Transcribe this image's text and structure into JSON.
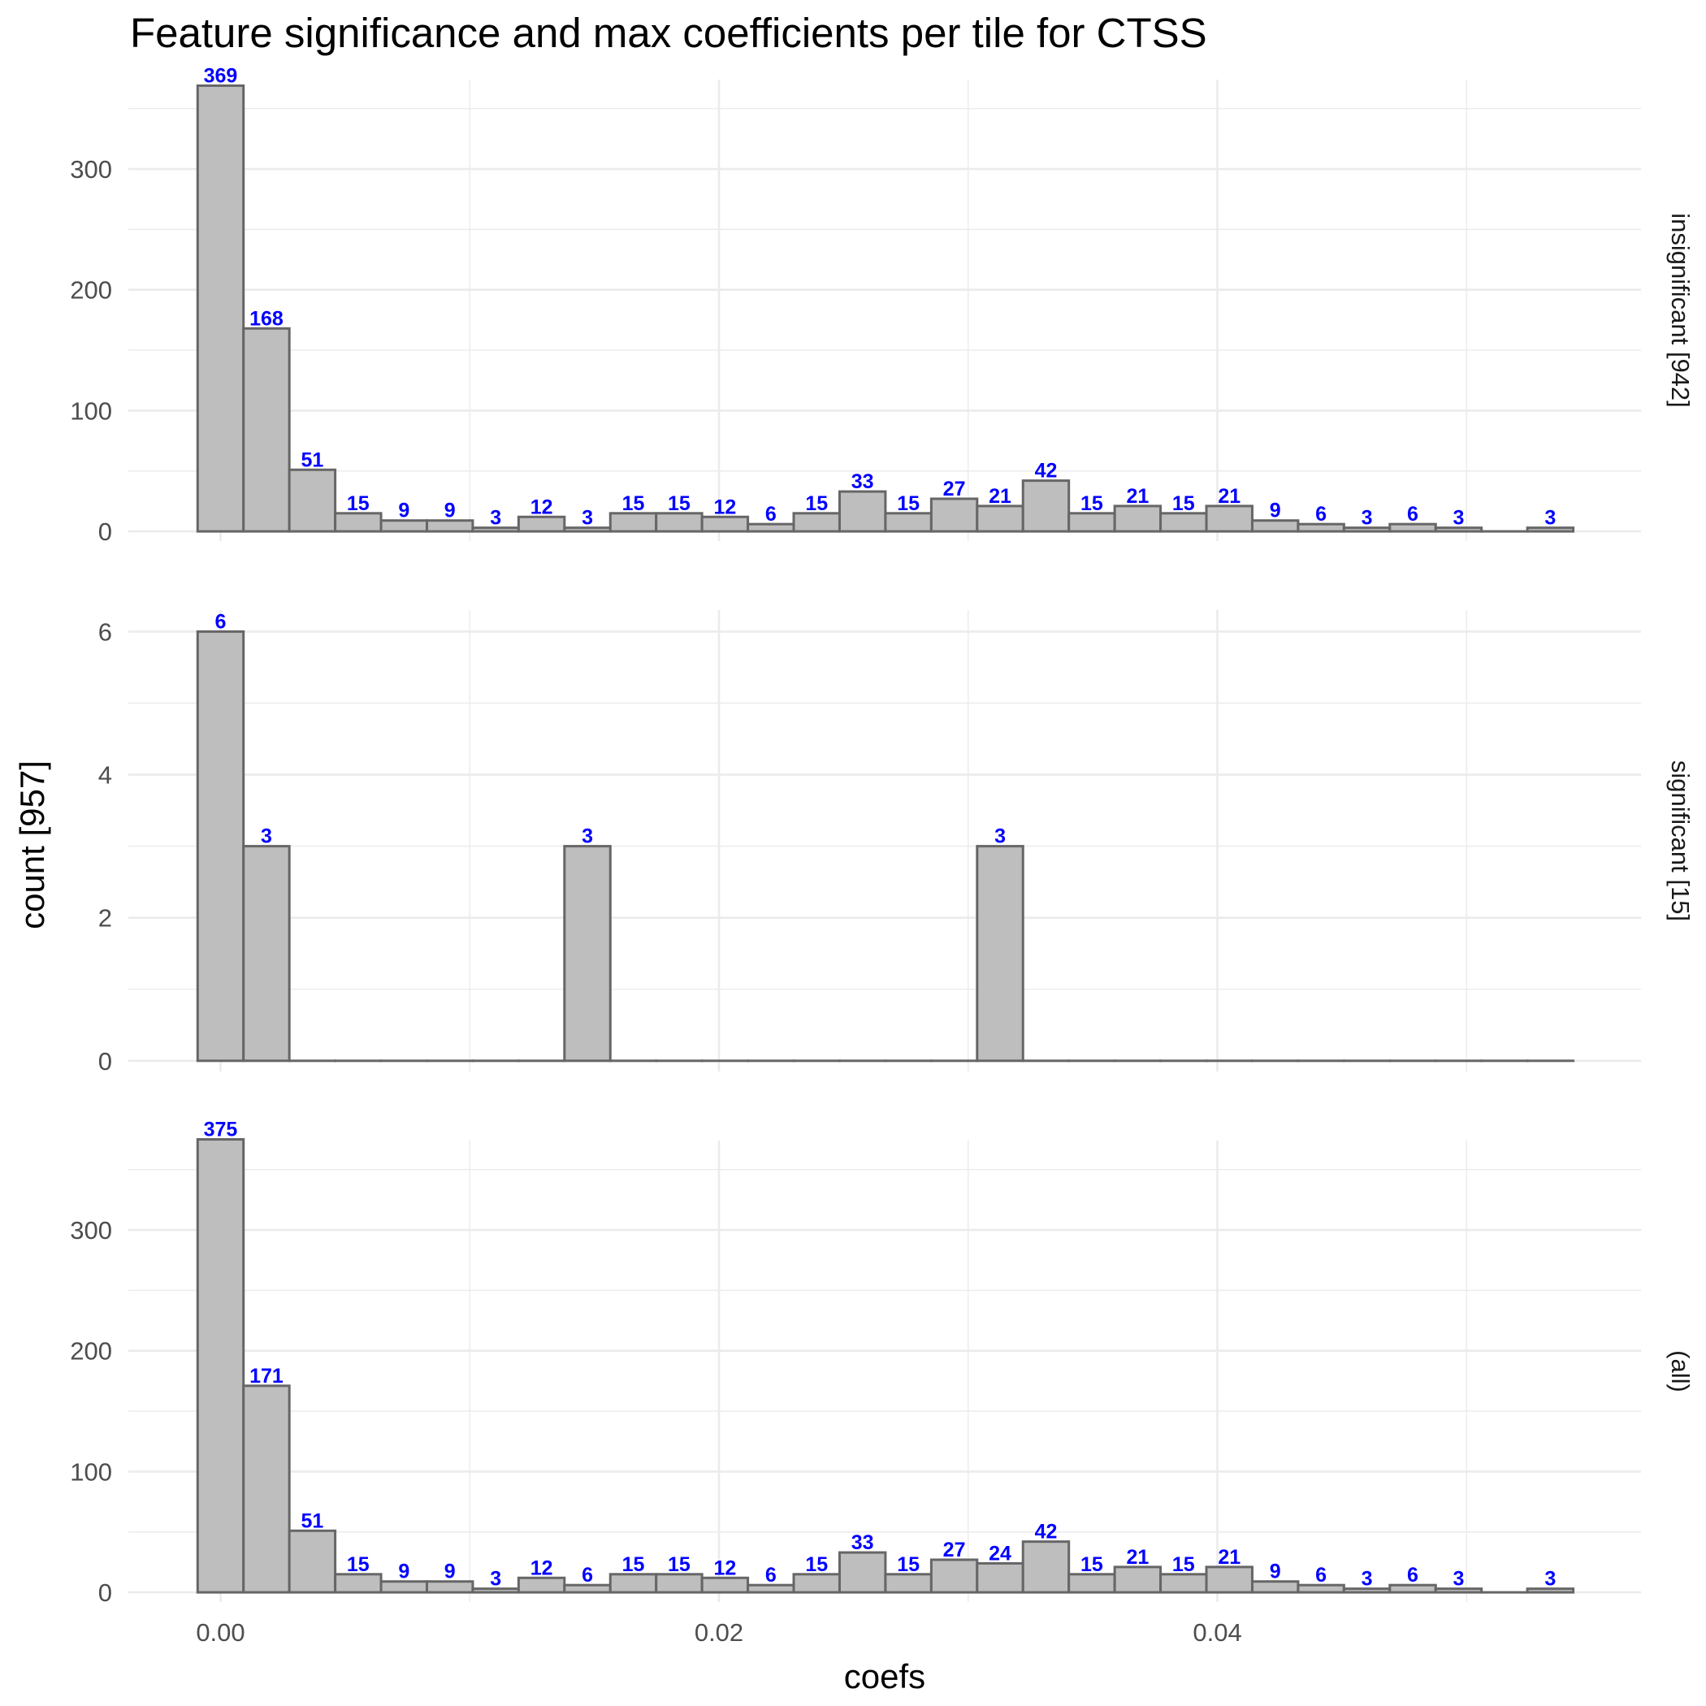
{
  "chart_data": {
    "type": "bar",
    "title": "Feature significance and max coefficients per tile for CTSS",
    "xlabel": "coefs",
    "ylabel": "count [957]",
    "bin_width": 0.00184,
    "x_first_bin_center": 0.0,
    "xlim": [
      -0.0037,
      0.057
    ],
    "x_ticks": [
      0.0,
      0.02,
      0.04
    ],
    "x_tick_labels": [
      "0.00",
      "0.02",
      "0.04"
    ],
    "label_color": "#0000ff",
    "bar_fill": "#bebebe",
    "bar_stroke": "#666666",
    "grid": true,
    "panels": [
      {
        "name": "insignificant [942]",
        "ylim": [
          -8,
          374
        ],
        "y_ticks": [
          0,
          100,
          200,
          300
        ],
        "values": [
          369,
          168,
          51,
          15,
          9,
          9,
          3,
          12,
          3,
          15,
          15,
          12,
          6,
          15,
          33,
          15,
          27,
          21,
          42,
          15,
          21,
          15,
          21,
          9,
          6,
          3,
          6,
          3,
          0,
          3
        ]
      },
      {
        "name": "significant [15]",
        "ylim": [
          -0.15,
          6.3
        ],
        "y_ticks": [
          0,
          2,
          4,
          6
        ],
        "values": [
          6,
          3,
          0,
          0,
          0,
          0,
          0,
          0,
          3,
          0,
          0,
          0,
          0,
          0,
          0,
          0,
          0,
          3,
          0,
          0,
          0,
          0,
          0,
          0,
          0,
          0,
          0,
          0,
          0,
          0
        ]
      },
      {
        "name": "(all)",
        "ylim": [
          -8,
          374
        ],
        "y_ticks": [
          0,
          100,
          200,
          300
        ],
        "values": [
          375,
          171,
          51,
          15,
          9,
          9,
          3,
          12,
          6,
          15,
          15,
          12,
          6,
          15,
          33,
          15,
          27,
          24,
          42,
          15,
          21,
          15,
          21,
          9,
          6,
          3,
          6,
          3,
          0,
          3
        ]
      }
    ]
  }
}
